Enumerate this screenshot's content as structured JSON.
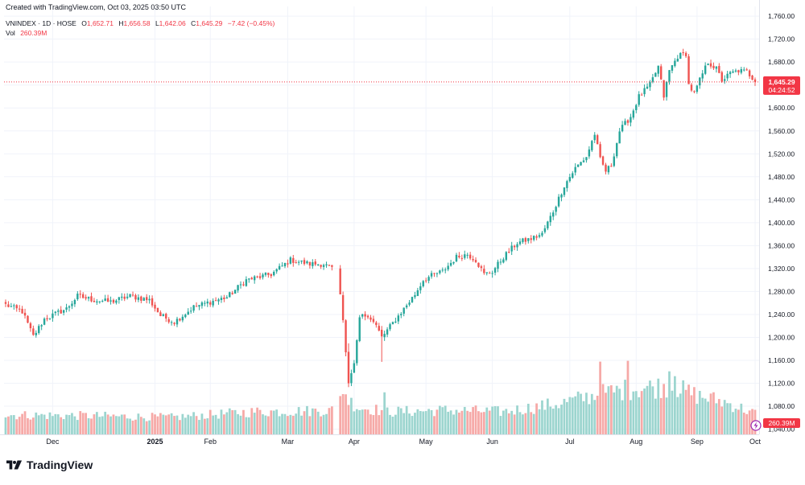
{
  "header": {
    "created_text": "Created with TradingView.com, Oct 03, 2025 03:50 UTC",
    "symbol": "VNINDEX · 1D · HOSE",
    "open_label": "O",
    "open": "1,652.71",
    "high_label": "H",
    "high": "1,656.58",
    "low_label": "L",
    "low": "1,642.06",
    "close_label": "C",
    "close": "1,645.29",
    "change": "−7.42 (−0.45%)",
    "vol_label": "Vol",
    "vol_value": "260.39M"
  },
  "price_tag": {
    "price": "1,645.29",
    "countdown": "04:24:52"
  },
  "volume_tag": "260.39M",
  "footer": {
    "brand": "TradingView"
  },
  "colors": {
    "up": "#26a69a",
    "down": "#ef5350",
    "up_volume": "#9cd5cf",
    "down_volume": "#f6a9a7",
    "grid": "#f0f3fa",
    "last_price": "#f23645"
  },
  "chart_data": {
    "type": "candlestick",
    "title": "VNINDEX · 1D · HOSE",
    "y_axis": {
      "ticks": [
        "1,760.00",
        "1,720.00",
        "1,680.00",
        "1,640.00",
        "1,600.00",
        "1,560.00",
        "1,520.00",
        "1,480.00",
        "1,440.00",
        "1,400.00",
        "1,360.00",
        "1,320.00",
        "1,280.00",
        "1,240.00",
        "1,200.00",
        "1,160.00",
        "1,120.00",
        "1,080.00",
        "1,040.00"
      ],
      "tick_values": [
        1760,
        1720,
        1680,
        1640,
        1600,
        1560,
        1520,
        1480,
        1440,
        1400,
        1360,
        1320,
        1280,
        1240,
        1200,
        1160,
        1120,
        1080,
        1040
      ],
      "range": [
        1031,
        1777
      ]
    },
    "x_axis": {
      "labels": [
        "Dec",
        "2025",
        "Feb",
        "Mar",
        "Apr",
        "May",
        "Jun",
        "Jul",
        "Aug",
        "Sep",
        "Oct"
      ],
      "bold_labels": [
        "2025"
      ],
      "label_bar_index": [
        17,
        54,
        74,
        102,
        126,
        152,
        176,
        204,
        228,
        250,
        271
      ]
    },
    "last_price": 1645.29,
    "grid": true,
    "price_path": [
      {
        "i": 0,
        "v": 1257
      },
      {
        "i": 6,
        "v": 1245
      },
      {
        "i": 10,
        "v": 1202
      },
      {
        "i": 14,
        "v": 1232
      },
      {
        "i": 22,
        "v": 1250
      },
      {
        "i": 26,
        "v": 1272
      },
      {
        "i": 32,
        "v": 1265
      },
      {
        "i": 38,
        "v": 1262
      },
      {
        "i": 45,
        "v": 1272
      },
      {
        "i": 52,
        "v": 1265
      },
      {
        "i": 56,
        "v": 1238
      },
      {
        "i": 61,
        "v": 1227
      },
      {
        "i": 68,
        "v": 1253
      },
      {
        "i": 74,
        "v": 1262
      },
      {
        "i": 80,
        "v": 1270
      },
      {
        "i": 87,
        "v": 1300
      },
      {
        "i": 96,
        "v": 1310
      },
      {
        "i": 103,
        "v": 1335
      },
      {
        "i": 110,
        "v": 1328
      },
      {
        "i": 115,
        "v": 1328
      },
      {
        "i": 118,
        "v": 1320
      },
      {
        "i": 120,
        "v": 1320
      },
      {
        "i": 121,
        "v": 1275
      },
      {
        "i": 122,
        "v": 1230
      },
      {
        "i": 123,
        "v": 1174
      },
      {
        "i": 124,
        "v": 1120
      },
      {
        "i": 126,
        "v": 1155
      },
      {
        "i": 128,
        "v": 1235
      },
      {
        "i": 131,
        "v": 1240
      },
      {
        "i": 134,
        "v": 1220
      },
      {
        "i": 136,
        "v": 1200
      },
      {
        "i": 140,
        "v": 1225
      },
      {
        "i": 144,
        "v": 1250
      },
      {
        "i": 148,
        "v": 1275
      },
      {
        "i": 151,
        "v": 1300
      },
      {
        "i": 155,
        "v": 1310
      },
      {
        "i": 158,
        "v": 1315
      },
      {
        "i": 163,
        "v": 1340
      },
      {
        "i": 167,
        "v": 1345
      },
      {
        "i": 170,
        "v": 1335
      },
      {
        "i": 173,
        "v": 1310
      },
      {
        "i": 176,
        "v": 1315
      },
      {
        "i": 180,
        "v": 1340
      },
      {
        "i": 185,
        "v": 1365
      },
      {
        "i": 190,
        "v": 1372
      },
      {
        "i": 194,
        "v": 1380
      },
      {
        "i": 198,
        "v": 1420
      },
      {
        "i": 202,
        "v": 1465
      },
      {
        "i": 206,
        "v": 1495
      },
      {
        "i": 210,
        "v": 1515
      },
      {
        "i": 213,
        "v": 1555
      },
      {
        "i": 215,
        "v": 1510
      },
      {
        "i": 217,
        "v": 1490
      },
      {
        "i": 219,
        "v": 1500
      },
      {
        "i": 222,
        "v": 1560
      },
      {
        "i": 226,
        "v": 1585
      },
      {
        "i": 229,
        "v": 1620
      },
      {
        "i": 233,
        "v": 1640
      },
      {
        "i": 236,
        "v": 1672
      },
      {
        "i": 238,
        "v": 1620
      },
      {
        "i": 240,
        "v": 1665
      },
      {
        "i": 243,
        "v": 1690
      },
      {
        "i": 246,
        "v": 1695
      },
      {
        "i": 247,
        "v": 1640
      },
      {
        "i": 249,
        "v": 1625
      },
      {
        "i": 252,
        "v": 1660
      },
      {
        "i": 254,
        "v": 1680
      },
      {
        "i": 257,
        "v": 1668
      },
      {
        "i": 259,
        "v": 1648
      },
      {
        "i": 262,
        "v": 1660
      },
      {
        "i": 265,
        "v": 1665
      },
      {
        "i": 268,
        "v": 1663
      },
      {
        "i": 270,
        "v": 1652.71
      },
      {
        "i": 271,
        "v": 1645.29
      }
    ],
    "volume_scale": {
      "full": 1200
    },
    "volume_path": [
      {
        "i": 0,
        "v": 240
      },
      {
        "i": 30,
        "v": 230
      },
      {
        "i": 60,
        "v": 210
      },
      {
        "i": 90,
        "v": 280
      },
      {
        "i": 110,
        "v": 290
      },
      {
        "i": 120,
        "v": 300
      },
      {
        "i": 122,
        "v": 580
      },
      {
        "i": 124,
        "v": 420
      },
      {
        "i": 128,
        "v": 330
      },
      {
        "i": 140,
        "v": 280
      },
      {
        "i": 160,
        "v": 300
      },
      {
        "i": 180,
        "v": 280
      },
      {
        "i": 200,
        "v": 380
      },
      {
        "i": 215,
        "v": 500
      },
      {
        "i": 225,
        "v": 560
      },
      {
        "i": 240,
        "v": 600
      },
      {
        "i": 250,
        "v": 480
      },
      {
        "i": 260,
        "v": 400
      },
      {
        "i": 271,
        "v": 260
      }
    ],
    "volume_spikes": [
      {
        "i": 215,
        "v": 900
      },
      {
        "i": 225,
        "v": 910
      },
      {
        "i": 240,
        "v": 780
      },
      {
        "i": 242,
        "v": 720
      },
      {
        "i": 137,
        "v": 520
      }
    ],
    "last_volume": "260.39M"
  }
}
